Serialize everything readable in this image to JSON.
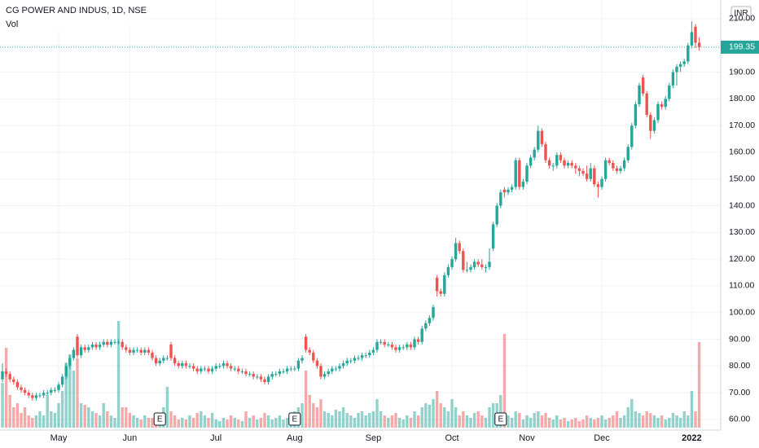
{
  "chart_data": {
    "type": "candlestick",
    "title": "CG POWER AND INDUS, 1D, NSE",
    "volume_label": "Vol",
    "currency": "INR",
    "up_color": "#26a69a",
    "down_color": "#ef5350",
    "grid": true,
    "ylim": [
      56,
      217
    ],
    "yticks": [
      {
        "value": 60,
        "label": "60.00"
      },
      {
        "value": 70,
        "label": "70.00"
      },
      {
        "value": 80,
        "label": "80.00"
      },
      {
        "value": 90,
        "label": "90.00"
      },
      {
        "value": 100,
        "label": "100.00"
      },
      {
        "value": 110,
        "label": "110.00"
      },
      {
        "value": 120,
        "label": "120.00"
      },
      {
        "value": 130,
        "label": "130.00"
      },
      {
        "value": 140,
        "label": "140.00"
      },
      {
        "value": 150,
        "label": "150.00"
      },
      {
        "value": 160,
        "label": "160.00"
      },
      {
        "value": 170,
        "label": "170.00"
      },
      {
        "value": 180,
        "label": "180.00"
      },
      {
        "value": 190,
        "label": "190.00"
      },
      {
        "value": 200,
        "label": "200.00"
      },
      {
        "value": 210,
        "label": "210.00"
      }
    ],
    "xticks": [
      {
        "value": 15,
        "label": "May"
      },
      {
        "value": 34,
        "label": "Jun"
      },
      {
        "value": 57,
        "label": "Jul"
      },
      {
        "value": 78,
        "label": "Aug"
      },
      {
        "value": 99,
        "label": "Sep"
      },
      {
        "value": 120,
        "label": "Oct"
      },
      {
        "value": 140,
        "label": "Nov"
      },
      {
        "value": 160,
        "label": "Dec"
      },
      {
        "value": 184,
        "label": "2022"
      }
    ],
    "earnings": [
      {
        "index": 42,
        "label": "E"
      },
      {
        "index": 78,
        "label": "E"
      },
      {
        "index": 133,
        "label": "E"
      }
    ],
    "candles": [
      [
        75,
        81,
        74,
        78
      ],
      [
        78,
        79,
        76,
        77
      ],
      [
        77,
        78,
        74,
        75
      ],
      [
        75,
        76,
        73,
        74
      ],
      [
        74,
        75,
        71,
        72
      ],
      [
        72,
        73,
        70,
        71
      ],
      [
        71,
        72,
        69,
        70
      ],
      [
        70,
        71,
        68,
        69
      ],
      [
        69,
        70,
        67,
        68
      ],
      [
        68,
        70,
        67,
        69
      ],
      [
        69,
        70,
        68,
        69
      ],
      [
        69,
        71,
        68,
        70
      ],
      [
        70,
        71,
        69,
        70
      ],
      [
        70,
        72,
        69,
        71
      ],
      [
        71,
        72,
        70,
        71
      ],
      [
        71,
        74,
        70,
        73
      ],
      [
        73,
        77,
        72,
        76
      ],
      [
        76,
        81,
        75,
        80
      ],
      [
        80,
        84,
        79,
        83
      ],
      [
        83,
        87,
        82,
        86
      ],
      [
        91,
        92,
        83,
        84
      ],
      [
        84,
        88,
        83,
        87
      ],
      [
        87,
        88,
        85,
        86
      ],
      [
        86,
        88,
        85,
        87
      ],
      [
        87,
        89,
        86,
        88
      ],
      [
        88,
        89,
        86,
        87
      ],
      [
        87,
        89,
        86,
        88
      ],
      [
        88,
        90,
        87,
        89
      ],
      [
        89,
        90,
        87,
        88
      ],
      [
        88,
        90,
        87,
        89
      ],
      [
        89,
        90,
        88,
        89
      ],
      [
        89,
        90,
        88,
        89
      ],
      [
        89,
        90,
        86,
        87
      ],
      [
        87,
        88,
        85,
        86
      ],
      [
        86,
        87,
        84,
        85
      ],
      [
        85,
        87,
        84,
        86
      ],
      [
        86,
        87,
        85,
        86
      ],
      [
        86,
        87,
        84,
        85
      ],
      [
        85,
        87,
        84,
        86
      ],
      [
        86,
        87,
        84,
        85
      ],
      [
        85,
        86,
        82,
        83
      ],
      [
        83,
        84,
        80,
        81
      ],
      [
        81,
        83,
        80,
        82
      ],
      [
        82,
        84,
        81,
        83
      ],
      [
        83,
        84,
        82,
        83
      ],
      [
        88,
        89,
        82,
        83
      ],
      [
        83,
        84,
        80,
        81
      ],
      [
        81,
        82,
        79,
        80
      ],
      [
        80,
        82,
        79,
        81
      ],
      [
        81,
        82,
        79,
        80
      ],
      [
        80,
        81,
        79,
        80
      ],
      [
        80,
        81,
        78,
        79
      ],
      [
        79,
        80,
        77,
        78
      ],
      [
        78,
        80,
        77,
        79
      ],
      [
        79,
        80,
        78,
        79
      ],
      [
        79,
        80,
        77,
        78
      ],
      [
        78,
        80,
        77,
        79
      ],
      [
        79,
        81,
        78,
        80
      ],
      [
        80,
        81,
        79,
        80
      ],
      [
        80,
        82,
        79,
        81
      ],
      [
        81,
        82,
        79,
        80
      ],
      [
        80,
        81,
        78,
        79
      ],
      [
        79,
        80,
        78,
        79
      ],
      [
        79,
        80,
        77,
        78
      ],
      [
        78,
        79,
        77,
        78
      ],
      [
        78,
        79,
        76,
        77
      ],
      [
        77,
        78,
        76,
        77
      ],
      [
        77,
        78,
        75,
        76
      ],
      [
        76,
        77,
        75,
        76
      ],
      [
        76,
        77,
        74,
        75
      ],
      [
        75,
        76,
        73,
        74
      ],
      [
        74,
        77,
        73,
        76
      ],
      [
        76,
        78,
        75,
        77
      ],
      [
        77,
        78,
        76,
        77
      ],
      [
        77,
        79,
        76,
        78
      ],
      [
        78,
        79,
        77,
        78
      ],
      [
        78,
        80,
        77,
        79
      ],
      [
        79,
        80,
        78,
        79
      ],
      [
        79,
        80,
        78,
        79
      ],
      [
        79,
        83,
        78,
        82
      ],
      [
        82,
        84,
        81,
        83
      ],
      [
        91,
        92,
        85,
        86
      ],
      [
        86,
        87,
        84,
        85
      ],
      [
        85,
        86,
        81,
        82
      ],
      [
        82,
        83,
        79,
        80
      ],
      [
        80,
        81,
        75,
        76
      ],
      [
        76,
        78,
        75,
        77
      ],
      [
        77,
        79,
        76,
        78
      ],
      [
        78,
        80,
        77,
        79
      ],
      [
        79,
        80,
        78,
        79
      ],
      [
        79,
        81,
        78,
        80
      ],
      [
        80,
        82,
        79,
        81
      ],
      [
        81,
        83,
        80,
        82
      ],
      [
        82,
        83,
        81,
        82
      ],
      [
        82,
        84,
        81,
        83
      ],
      [
        83,
        84,
        82,
        83
      ],
      [
        83,
        85,
        82,
        84
      ],
      [
        84,
        85,
        83,
        84
      ],
      [
        84,
        86,
        83,
        85
      ],
      [
        85,
        87,
        84,
        86
      ],
      [
        86,
        90,
        85,
        89
      ],
      [
        89,
        90,
        88,
        89
      ],
      [
        89,
        90,
        87,
        88
      ],
      [
        88,
        89,
        87,
        88
      ],
      [
        88,
        89,
        86,
        87
      ],
      [
        87,
        88,
        85,
        86
      ],
      [
        86,
        88,
        85,
        87
      ],
      [
        87,
        88,
        86,
        87
      ],
      [
        87,
        89,
        86,
        88
      ],
      [
        88,
        89,
        86,
        87
      ],
      [
        87,
        91,
        86,
        90
      ],
      [
        90,
        91,
        88,
        89
      ],
      [
        89,
        95,
        88,
        94
      ],
      [
        94,
        97,
        93,
        96
      ],
      [
        96,
        99,
        95,
        98
      ],
      [
        98,
        103,
        97,
        102
      ],
      [
        113,
        114,
        106,
        108
      ],
      [
        108,
        109,
        106,
        107
      ],
      [
        107,
        115,
        106,
        114
      ],
      [
        114,
        118,
        113,
        117
      ],
      [
        117,
        121,
        116,
        120
      ],
      [
        120,
        128,
        119,
        126
      ],
      [
        126,
        127,
        122,
        123
      ],
      [
        123,
        124,
        115,
        116
      ],
      [
        116,
        119,
        115,
        116
      ],
      [
        116,
        118,
        115,
        117
      ],
      [
        117,
        120,
        116,
        119
      ],
      [
        119,
        120,
        117,
        118
      ],
      [
        118,
        120,
        116,
        117
      ],
      [
        117,
        118,
        115,
        117
      ],
      [
        117,
        124,
        116,
        119
      ],
      [
        124,
        134,
        123,
        133
      ],
      [
        133,
        141,
        132,
        140
      ],
      [
        140,
        146,
        139,
        145
      ],
      [
        146,
        147,
        143,
        145
      ],
      [
        145,
        147,
        144,
        146
      ],
      [
        146,
        148,
        145,
        147
      ],
      [
        147,
        158,
        146,
        157
      ],
      [
        157,
        158,
        146,
        147
      ],
      [
        147,
        150,
        146,
        149
      ],
      [
        149,
        156,
        148,
        155
      ],
      [
        155,
        159,
        154,
        158
      ],
      [
        158,
        162,
        157,
        161
      ],
      [
        161,
        170,
        160,
        168
      ],
      [
        168,
        169,
        162,
        163
      ],
      [
        163,
        164,
        156,
        157
      ],
      [
        157,
        158,
        154,
        155
      ],
      [
        155,
        156,
        153,
        155
      ],
      [
        155,
        160,
        154,
        159
      ],
      [
        159,
        160,
        156,
        157
      ],
      [
        157,
        158,
        154,
        155
      ],
      [
        155,
        157,
        154,
        156
      ],
      [
        156,
        157,
        154,
        155
      ],
      [
        155,
        156,
        152,
        154
      ],
      [
        154,
        155,
        151,
        153
      ],
      [
        153,
        154,
        151,
        152
      ],
      [
        152,
        155,
        149,
        150
      ],
      [
        150,
        156,
        149,
        154
      ],
      [
        154,
        155,
        147,
        148
      ],
      [
        148,
        149,
        143,
        147
      ],
      [
        147,
        151,
        146,
        150
      ],
      [
        150,
        158,
        149,
        157
      ],
      [
        157,
        158,
        155,
        156
      ],
      [
        156,
        157,
        153,
        154
      ],
      [
        154,
        155,
        152,
        153
      ],
      [
        153,
        155,
        152,
        154
      ],
      [
        154,
        158,
        153,
        157
      ],
      [
        157,
        163,
        156,
        162
      ],
      [
        162,
        171,
        161,
        170
      ],
      [
        170,
        179,
        169,
        178
      ],
      [
        178,
        186,
        177,
        185
      ],
      [
        188,
        189,
        181,
        182
      ],
      [
        182,
        183,
        173,
        174
      ],
      [
        174,
        175,
        165,
        168
      ],
      [
        168,
        173,
        167,
        172
      ],
      [
        172,
        179,
        171,
        178
      ],
      [
        178,
        179,
        176,
        177
      ],
      [
        177,
        181,
        176,
        180
      ],
      [
        180,
        186,
        179,
        185
      ],
      [
        185,
        191,
        184,
        190
      ],
      [
        190,
        193,
        185,
        192
      ],
      [
        192,
        194,
        190,
        193
      ],
      [
        193,
        195,
        192,
        194
      ],
      [
        194,
        201,
        193,
        200
      ],
      [
        200,
        209,
        199,
        205
      ],
      [
        207,
        208,
        199,
        201
      ],
      [
        201,
        203,
        198,
        199.35
      ]
    ],
    "volume": [
      55,
      98,
      40,
      25,
      30,
      18,
      25,
      15,
      12,
      15,
      20,
      15,
      40,
      20,
      18,
      30,
      45,
      80,
      90,
      70,
      85,
      30,
      28,
      25,
      20,
      18,
      15,
      30,
      20,
      15,
      12,
      131,
      25,
      25,
      18,
      15,
      12,
      10,
      15,
      12,
      12,
      15,
      12,
      25,
      50,
      20,
      15,
      10,
      12,
      10,
      15,
      12,
      18,
      20,
      15,
      12,
      18,
      10,
      8,
      12,
      10,
      15,
      12,
      10,
      8,
      20,
      12,
      15,
      10,
      12,
      18,
      15,
      10,
      12,
      15,
      10,
      12,
      15,
      20,
      25,
      30,
      70,
      40,
      30,
      25,
      35,
      20,
      18,
      15,
      22,
      20,
      25,
      18,
      15,
      12,
      18,
      20,
      15,
      18,
      20,
      35,
      20,
      15,
      12,
      15,
      18,
      12,
      10,
      15,
      12,
      20,
      15,
      25,
      30,
      28,
      35,
      45,
      30,
      25,
      20,
      35,
      25,
      15,
      20,
      15,
      12,
      18,
      20,
      15,
      12,
      25,
      30,
      30,
      40,
      115,
      15,
      12,
      20,
      18,
      10,
      15,
      12,
      18,
      20,
      15,
      18,
      12,
      10,
      15,
      10,
      12,
      8,
      10,
      12,
      8,
      10,
      15,
      12,
      10,
      12,
      15,
      10,
      12,
      15,
      20,
      12,
      15,
      25,
      35,
      20,
      18,
      15,
      20,
      18,
      15,
      12,
      15,
      10,
      12,
      18,
      15,
      12,
      20,
      15,
      45,
      20,
      105
    ]
  }
}
